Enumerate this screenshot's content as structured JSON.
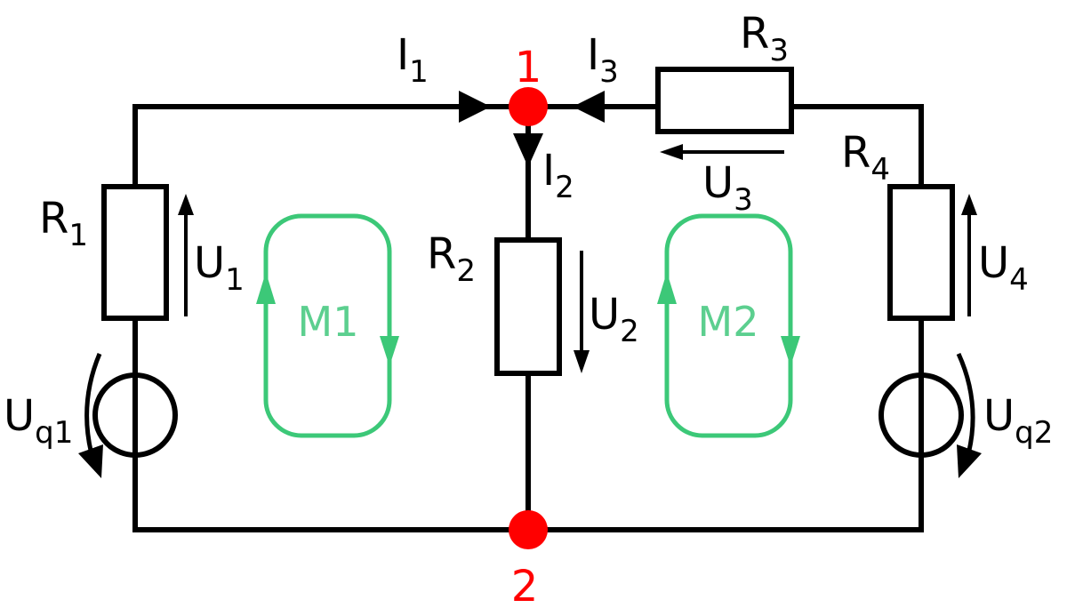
{
  "colors": {
    "wire": "#000000",
    "node": "#ff0000",
    "mesh": "#3cc878",
    "background": "#ffffff"
  },
  "resistors": [
    {
      "main": "R",
      "sub": "1"
    },
    {
      "main": "R",
      "sub": "2"
    },
    {
      "main": "R",
      "sub": "3"
    },
    {
      "main": "R",
      "sub": "4"
    }
  ],
  "currents": [
    {
      "main": "I",
      "sub": "1"
    },
    {
      "main": "I",
      "sub": "2"
    },
    {
      "main": "I",
      "sub": "3"
    }
  ],
  "voltages": [
    {
      "main": "U",
      "sub": "1"
    },
    {
      "main": "U",
      "sub": "2"
    },
    {
      "main": "U",
      "sub": "3"
    },
    {
      "main": "U",
      "sub": "4"
    }
  ],
  "sources": [
    {
      "main": "U",
      "sub": "q1"
    },
    {
      "main": "U",
      "sub": "q2"
    }
  ],
  "nodes": [
    {
      "label": "1"
    },
    {
      "label": "2"
    }
  ],
  "meshes": [
    {
      "label": "M1"
    },
    {
      "label": "M2"
    }
  ]
}
